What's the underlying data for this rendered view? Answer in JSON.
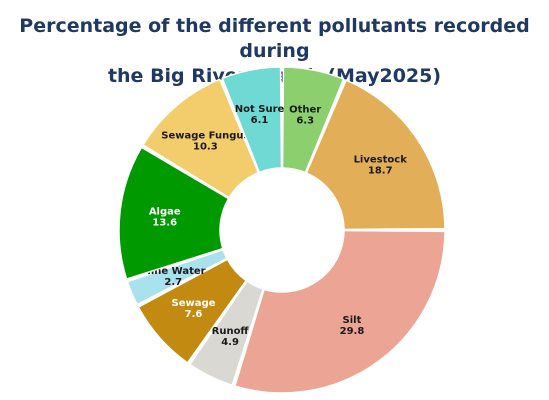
{
  "chart_data": {
    "type": "pie",
    "title_lines": [
      "Percentage of the different pollutants recorded during",
      "the Big River Watch (May2025)"
    ],
    "slices": [
      {
        "label": "Other",
        "value": 6.3,
        "color": "#8ccf6e",
        "text_color": "#1a1a1a"
      },
      {
        "label": "Livestock",
        "value": 18.7,
        "color": "#e2ae58",
        "text_color": "#1a1a1a"
      },
      {
        "label": "Silt",
        "value": 29.8,
        "color": "#eca595",
        "text_color": "#1a1a1a"
      },
      {
        "label": "Runoff",
        "value": 4.9,
        "color": "#d9d8d2",
        "text_color": "#1a1a1a"
      },
      {
        "label": "Sewage",
        "value": 7.6,
        "color": "#c28a10",
        "text_color": "#ffffff"
      },
      {
        "label": "Mine Water",
        "value": 2.7,
        "color": "#a9e2ec",
        "text_color": "#1a1a1a"
      },
      {
        "label": "Algae",
        "value": 13.6,
        "color": "#009900",
        "text_color": "#ffffff"
      },
      {
        "label": "Sewage Fungus",
        "value": 10.3,
        "color": "#f3cc6c",
        "text_color": "#1a1a1a"
      },
      {
        "label": "Not Sure",
        "value": 6.1,
        "color": "#6fd9d4",
        "text_color": "#1a1a1a"
      }
    ]
  }
}
